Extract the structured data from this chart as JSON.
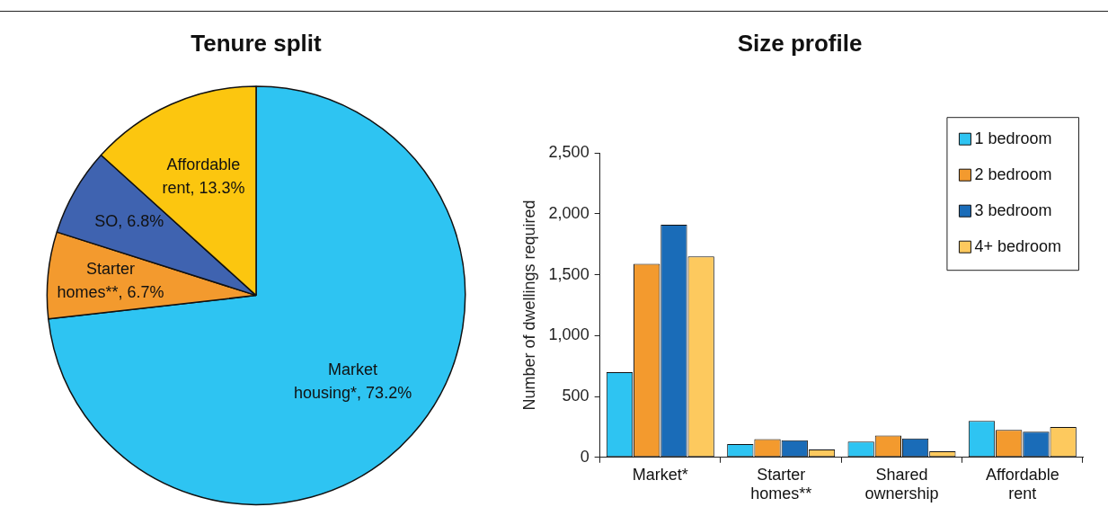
{
  "chart_data": [
    {
      "type": "pie",
      "title": "Tenure split",
      "categories": [
        "Market housing*",
        "Starter homes**",
        "SO",
        "Affordable rent"
      ],
      "values": [
        73.2,
        6.7,
        6.8,
        13.3
      ],
      "colors": [
        "#2ec4f2",
        "#f39a2e",
        "#3f63b0",
        "#fcc60f"
      ],
      "value_labels": [
        "73.2%",
        "6.7%",
        "6.8%",
        "13.3%"
      ],
      "legend": false
    },
    {
      "type": "bar",
      "title": "Size profile",
      "ylabel": "Number of dwellings required",
      "categories": [
        "Market*",
        "Starter homes**",
        "Shared ownership",
        "Affordable rent"
      ],
      "series": [
        {
          "name": "1 bedroom",
          "color": "#2ec4f2",
          "values": [
            700,
            110,
            130,
            300
          ]
        },
        {
          "name": "2 bedroom",
          "color": "#f39a2e",
          "values": [
            1590,
            150,
            180,
            225
          ]
        },
        {
          "name": "3 bedroom",
          "color": "#1a6cb8",
          "values": [
            1910,
            140,
            155,
            210
          ]
        },
        {
          "name": "4+ bedroom",
          "color": "#fdc95e",
          "values": [
            1650,
            65,
            50,
            250
          ]
        }
      ],
      "ylim": [
        0,
        2500
      ],
      "yticks": [
        0,
        500,
        {
          "value": 1000,
          "label": "1,000"
        },
        {
          "value": 1500,
          "label": "1,500"
        },
        {
          "value": 2000,
          "label": "2,000"
        },
        {
          "value": 2500,
          "label": "2,500"
        }
      ],
      "grid": false,
      "legend": "top right"
    }
  ]
}
